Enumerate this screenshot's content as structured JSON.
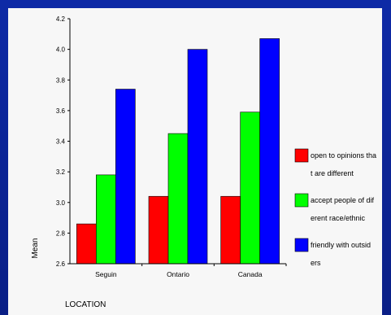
{
  "chart_data": {
    "type": "bar",
    "xlabel": "LOCATION",
    "ylabel": "Mean",
    "categories": [
      "Seguin",
      "Ontario",
      "Canada"
    ],
    "ylim": [
      2.6,
      4.2
    ],
    "yticks": [
      "2.6",
      "2.8",
      "3.0",
      "3.2",
      "3.4",
      "3.6",
      "3.8",
      "4.0",
      "4.2"
    ],
    "grid": false,
    "legend_position": "right",
    "series": [
      {
        "name": "open to opinions that are different",
        "color": "#ff0000",
        "values": [
          2.86,
          3.04,
          3.04
        ]
      },
      {
        "name": "accept people of different race/ethnic",
        "color": "#00ff00",
        "values": [
          3.18,
          3.45,
          3.59
        ]
      },
      {
        "name": "friendly with outsiders",
        "color": "#0000ff",
        "values": [
          3.74,
          4.0,
          4.07
        ]
      }
    ],
    "legend": [
      {
        "line1": "open to opinions tha",
        "line2": "t are different"
      },
      {
        "line1": "accept people of dif",
        "line2": "erent race/ethnic"
      },
      {
        "line1": "friendly with outsid",
        "line2": "ers"
      }
    ]
  }
}
